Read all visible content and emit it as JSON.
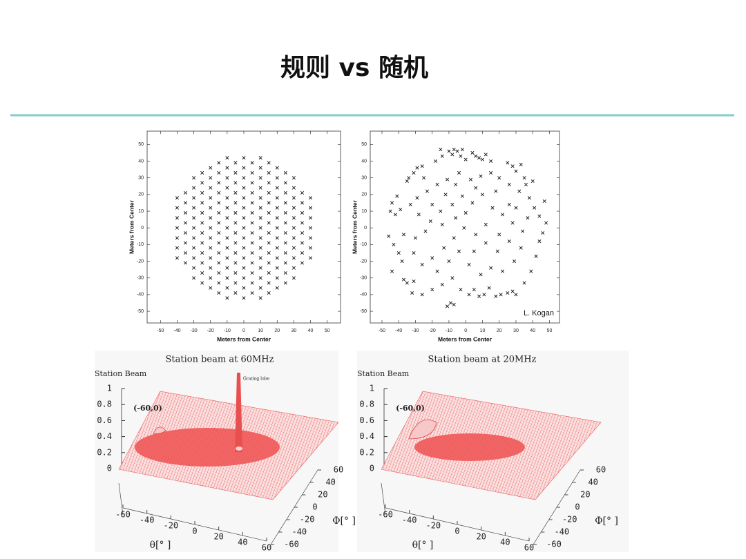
{
  "title": "规则 vs 随机",
  "chart_data": [
    {
      "type": "scatter",
      "xlabel": "Meters from Center",
      "ylabel": "Meters from Center",
      "xlim": [
        -58,
        58
      ],
      "ylim": [
        -57,
        58
      ],
      "xticks": [
        -50,
        -40,
        -30,
        -20,
        -10,
        0,
        10,
        20,
        30,
        40,
        50
      ],
      "yticks": [
        -50,
        -40,
        -30,
        -20,
        -10,
        0,
        10,
        20,
        30,
        40,
        50
      ],
      "columns": [
        {
          "x": -40,
          "y": [
            -18,
            -12,
            -6,
            0,
            6,
            12,
            18
          ]
        },
        {
          "x": -35,
          "y": [
            -21,
            -15,
            -9,
            -3,
            3,
            9,
            15,
            21
          ]
        },
        {
          "x": -30,
          "y": [
            -30,
            -24,
            -18,
            -12,
            -6,
            0,
            6,
            12,
            18,
            24,
            30
          ]
        },
        {
          "x": -25,
          "y": [
            -33,
            -27,
            -21,
            -15,
            -9,
            -3,
            3,
            9,
            15,
            21,
            27,
            33
          ]
        },
        {
          "x": -20,
          "y": [
            -36,
            -30,
            -24,
            -18,
            -12,
            -6,
            0,
            6,
            12,
            18,
            24,
            30,
            36
          ]
        },
        {
          "x": -15,
          "y": [
            -39,
            -33,
            -27,
            -21,
            -15,
            -9,
            -3,
            3,
            9,
            15,
            21,
            27,
            33,
            39
          ]
        },
        {
          "x": -10,
          "y": [
            -42,
            -36,
            -30,
            -24,
            -18,
            -12,
            -6,
            0,
            6,
            12,
            18,
            24,
            30,
            36,
            42
          ]
        },
        {
          "x": -5,
          "y": [
            -39,
            -33,
            -27,
            -21,
            -15,
            -9,
            -3,
            3,
            9,
            15,
            21,
            27,
            33,
            39
          ]
        },
        {
          "x": 0,
          "y": [
            -42,
            -36,
            -30,
            -24,
            -18,
            -12,
            -6,
            0,
            6,
            12,
            18,
            24,
            30,
            36,
            42
          ]
        },
        {
          "x": 5,
          "y": [
            -39,
            -33,
            -27,
            -21,
            -15,
            -9,
            -3,
            3,
            9,
            15,
            21,
            27,
            33,
            39
          ]
        },
        {
          "x": 10,
          "y": [
            -42,
            -36,
            -30,
            -24,
            -18,
            -12,
            -6,
            0,
            6,
            12,
            18,
            24,
            30,
            36,
            42
          ]
        },
        {
          "x": 15,
          "y": [
            -39,
            -33,
            -27,
            -21,
            -15,
            -9,
            -3,
            3,
            9,
            15,
            21,
            27,
            33,
            39
          ]
        },
        {
          "x": 20,
          "y": [
            -36,
            -30,
            -24,
            -18,
            -12,
            -6,
            0,
            6,
            12,
            18,
            24,
            30,
            36
          ]
        },
        {
          "x": 25,
          "y": [
            -33,
            -27,
            -21,
            -15,
            -9,
            -3,
            3,
            9,
            15,
            21,
            27,
            33
          ]
        },
        {
          "x": 30,
          "y": [
            -30,
            -24,
            -18,
            -12,
            -6,
            0,
            6,
            12,
            18,
            24,
            30
          ]
        },
        {
          "x": 35,
          "y": [
            -21,
            -15,
            -9,
            -3,
            3,
            9,
            15,
            21
          ]
        },
        {
          "x": 40,
          "y": [
            -18,
            -12,
            -6,
            0,
            6,
            12,
            18
          ]
        }
      ]
    },
    {
      "type": "scatter",
      "xlabel": "Meters from Center",
      "ylabel": "Meters from Center",
      "annotation": "L. Kogan",
      "xlim": [
        -57,
        56
      ],
      "ylim": [
        -57,
        58
      ],
      "xticks": [
        -50,
        -40,
        -30,
        -20,
        -10,
        0,
        10,
        20,
        30,
        40,
        50
      ],
      "yticks": [
        -50,
        -40,
        -30,
        -20,
        -10,
        0,
        10,
        20,
        30,
        40,
        50
      ],
      "x": [
        -15,
        -10,
        -7,
        -5,
        -2,
        4,
        6,
        8,
        10,
        12,
        15,
        -14,
        -8,
        -3,
        0,
        -18,
        -26,
        -29,
        -31,
        -34,
        -35,
        25,
        28,
        30,
        33,
        35,
        36,
        40,
        47,
        -41,
        -44,
        -39,
        -42,
        -45,
        -46,
        -43,
        -40,
        -44,
        -37,
        -35,
        -31,
        -32,
        -26,
        -20,
        -14,
        -8,
        -3,
        -9,
        -11,
        -7,
        2,
        5,
        8,
        11,
        14,
        18,
        21,
        25,
        28,
        30,
        35,
        39,
        42,
        44,
        46,
        48,
        44,
        41,
        38,
        32,
        26,
        20,
        15,
        9,
        3,
        -4,
        -11,
        -17,
        -23,
        -29,
        -33,
        -28,
        -21,
        -15,
        -8,
        -2,
        4,
        10,
        16,
        22,
        28,
        34,
        26,
        19,
        12,
        6,
        -1,
        -7,
        -13,
        -20,
        -26,
        -31,
        -37,
        -24,
        -17,
        -10,
        -4,
        2,
        9,
        15,
        22,
        29,
        33,
        37,
        30,
        18,
        6,
        -6,
        -12,
        -20,
        -14,
        -6,
        0,
        12,
        20,
        26,
        -30,
        -38,
        5,
        -25
      ],
      "y": [
        47,
        46,
        47,
        46,
        47,
        45,
        43,
        42,
        41,
        44,
        40,
        43,
        44,
        43,
        41,
        40,
        37,
        36,
        33,
        30,
        28,
        39,
        37,
        34,
        38,
        30,
        26,
        28,
        16,
        19,
        15,
        11,
        8,
        10,
        -5,
        -10,
        -15,
        -26,
        -31,
        -33,
        -32,
        -39,
        -40,
        -37,
        -34,
        -30,
        -37,
        -45,
        -47,
        -46,
        -40,
        -37,
        -41,
        -40,
        -36,
        -41,
        -40,
        -39,
        -38,
        -40,
        -33,
        -26,
        -17,
        -8,
        -3,
        3,
        7,
        12,
        18,
        22,
        26,
        30,
        33,
        31,
        29,
        33,
        29,
        26,
        22,
        18,
        14,
        8,
        4,
        10,
        14,
        19,
        15,
        20,
        12,
        8,
        3,
        -2,
        -8,
        -14,
        -9,
        -4,
        0,
        -6,
        -12,
        -18,
        -22,
        -15,
        -4,
        -2,
        -26,
        -20,
        -14,
        -22,
        -28,
        -24,
        -26,
        -20,
        -12,
        6,
        12,
        22,
        24,
        26,
        20,
        14,
        2,
        6,
        9,
        2,
        -4,
        14,
        -6,
        -20,
        -14,
        30
      ]
    },
    {
      "type": "surface",
      "title": "Station beam at 60MHz",
      "zlabel": "Station Beam",
      "xlabel": "θ[° ]",
      "ylabel": "Φ[° ]",
      "annotations": [
        "(-60,0)",
        "Grating lobe"
      ],
      "zlim": [
        0,
        1
      ],
      "zticks": [
        0,
        0.2,
        0.4,
        0.6,
        0.8,
        1
      ],
      "xlim": [
        -60,
        60
      ],
      "xticks": [
        -60,
        -40,
        -20,
        0,
        20,
        40,
        60
      ],
      "ylim": [
        -60,
        60
      ],
      "yticks": [
        -60,
        -40,
        -20,
        0,
        20,
        40,
        60
      ]
    },
    {
      "type": "surface",
      "title": "Station beam at 20MHz",
      "zlabel": "Station Beam",
      "xlabel": "θ[° ]",
      "ylabel": "Φ[° ]",
      "annotations": [
        "(-60,0)"
      ],
      "zlim": [
        0,
        1
      ],
      "zticks": [
        0,
        0.2,
        0.4,
        0.6,
        0.8,
        1
      ],
      "xlim": [
        -60,
        60
      ],
      "xticks": [
        -60,
        -40,
        -20,
        0,
        20,
        40,
        60
      ],
      "ylim": [
        -60,
        60
      ],
      "yticks": [
        -60,
        -40,
        -20,
        0,
        20,
        40,
        60
      ]
    }
  ]
}
